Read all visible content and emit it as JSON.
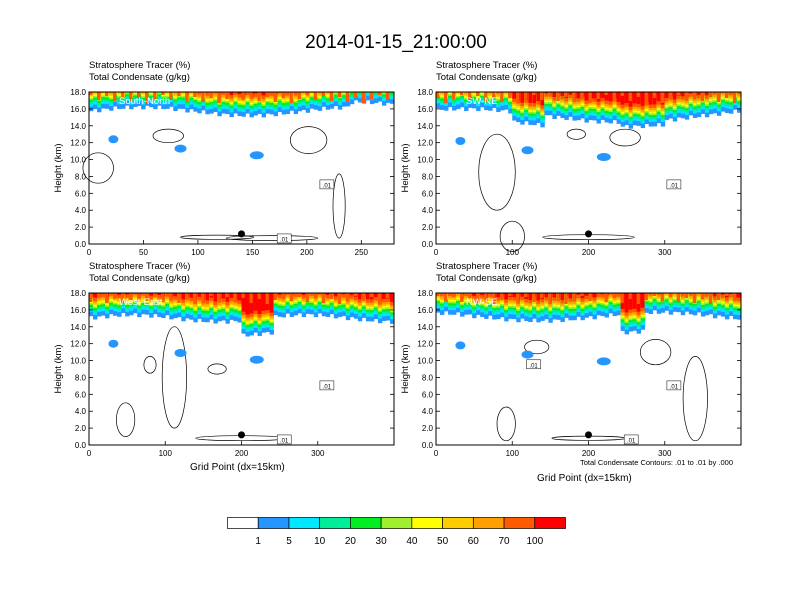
{
  "title": "2014-01-15_21:00:00",
  "colors": {
    "levels": [
      "#ffffff",
      "#2596ff",
      "#00e8ff",
      "#00ee9a",
      "#00ee22",
      "#a0ee2e",
      "#ffff00",
      "#ffcc00",
      "#ff9f00",
      "#ff5a00",
      "#ff0000"
    ]
  },
  "panels": [
    {
      "id": "south-north",
      "label1": "Stratosphere Tracer   (%)",
      "label2": "Total Condensate   (g/kg)",
      "section_label": "South-North",
      "ylabel": "Height (km)",
      "xlabel": "",
      "xmax": 280,
      "xticks": [
        0,
        50,
        100,
        150,
        200,
        250
      ],
      "yticks": [
        "0.0",
        "2.0",
        "4.0",
        "6.0",
        "8.0",
        "10.0",
        "12.0",
        "14.0",
        "16.0",
        "18.0"
      ],
      "contour_labels": [
        ".01",
        ".01"
      ],
      "marker_x": 140
    },
    {
      "id": "sw-ne",
      "label1": "Stratosphere Tracer   (%)",
      "label2": "Total Condensate   (g/kg)",
      "section_label": "SW-NE",
      "ylabel": "Height (km)",
      "xlabel": "",
      "xmax": 400,
      "xticks": [
        0,
        100,
        200,
        300
      ],
      "yticks": [
        "0.0",
        "2.0",
        "4.0",
        "6.0",
        "8.0",
        "10.0",
        "12.0",
        "14.0",
        "16.0",
        "18.0"
      ],
      "contour_labels": [
        ".01"
      ],
      "marker_x": 200
    },
    {
      "id": "west-east",
      "label1": "Stratosphere Tracer   (%)",
      "label2": "Total Condensate   (g/kg)",
      "section_label": "West-East",
      "ylabel": "Height (km)",
      "xlabel": "Grid Point (dx=15km)",
      "xmax": 400,
      "xticks": [
        0,
        100,
        200,
        300
      ],
      "yticks": [
        "0.0",
        "2.0",
        "4.0",
        "6.0",
        "8.0",
        "10.0",
        "12.0",
        "14.0",
        "16.0",
        "18.0"
      ],
      "contour_labels": [
        ".01",
        ".01"
      ],
      "marker_x": 200
    },
    {
      "id": "nw-se",
      "label1": "Stratosphere Tracer   (%)",
      "label2": "Total Condensate   (g/kg)",
      "section_label": "NW-SE",
      "ylabel": "Height (km)",
      "xlabel": "Grid Point (dx=15km)",
      "xmax": 400,
      "xticks": [
        0,
        100,
        200,
        300
      ],
      "yticks": [
        "0.0",
        "2.0",
        "4.0",
        "6.0",
        "8.0",
        "10.0",
        "12.0",
        "14.0",
        "16.0",
        "18.0"
      ],
      "contour_labels": [
        ".01",
        ".01",
        ".01"
      ],
      "marker_x": 200
    }
  ],
  "footnote": "Total Condensate Contours: .01 to .01 by .000",
  "chart_data": {
    "type": "heatmap",
    "title": "2014-01-15_21:00:00",
    "xlabel": "Grid Point (dx=15km)",
    "ylabel": "Height (km)",
    "ylim": [
      0,
      18
    ],
    "colorbar": {
      "label": "Stratosphere Tracer (%)",
      "levels": [
        1,
        5,
        10,
        20,
        30,
        40,
        50,
        60,
        70,
        100
      ]
    },
    "panels": [
      {
        "name": "South-North",
        "xlim": [
          0,
          280
        ],
        "tropopause_km": 16.5
      },
      {
        "name": "SW-NE",
        "xlim": [
          0,
          400
        ],
        "tropopause_km": 16.0
      },
      {
        "name": "West-East",
        "xlim": [
          0,
          400
        ],
        "tropopause_km": 16.0
      },
      {
        "name": "NW-SE",
        "xlim": [
          0,
          400
        ],
        "tropopause_km": 16.2
      }
    ],
    "contour": {
      "field": "Total Condensate (g/kg)",
      "min": 0.01,
      "max": 0.01,
      "interval": 0.0
    }
  }
}
